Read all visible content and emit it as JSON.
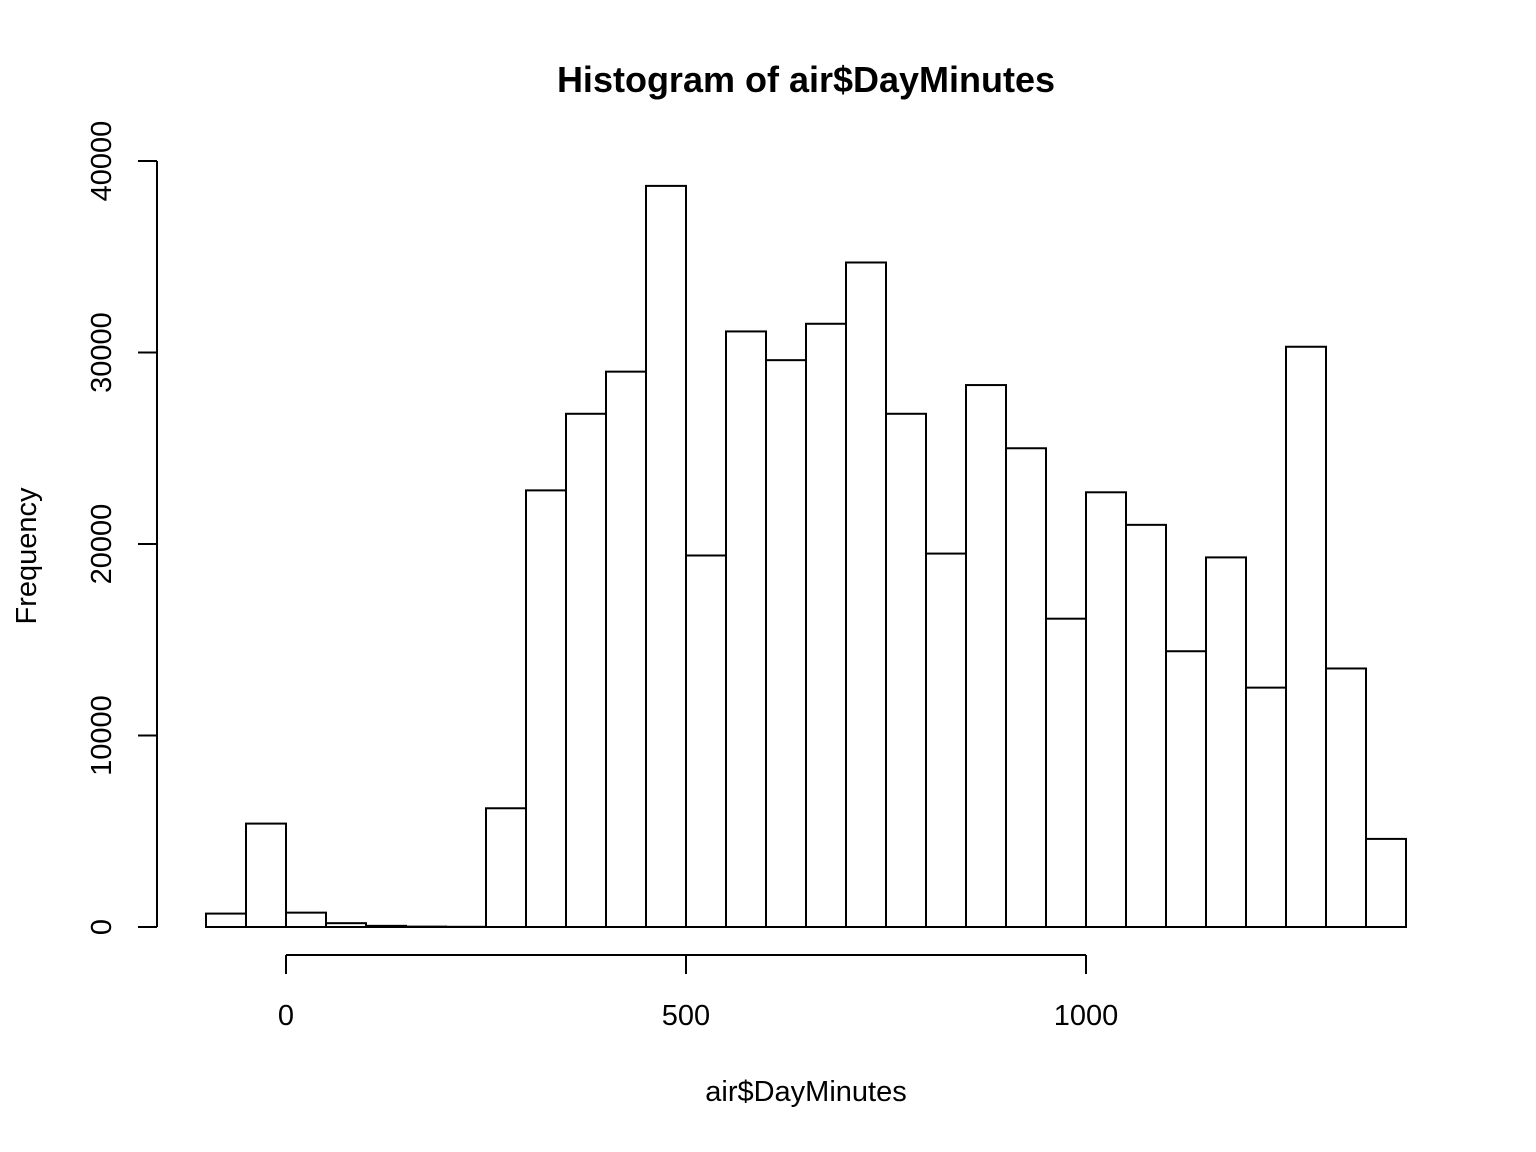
{
  "chart_data": {
    "type": "bar",
    "title": "Histogram of air$DayMinutes",
    "xlabel": "air$DayMinutes",
    "ylabel": "Frequency",
    "bin_width": 50,
    "bins": [
      {
        "x0": -100,
        "x1": -50,
        "count": 700
      },
      {
        "x0": -50,
        "x1": 0,
        "count": 5400
      },
      {
        "x0": 0,
        "x1": 50,
        "count": 750
      },
      {
        "x0": 50,
        "x1": 100,
        "count": 200
      },
      {
        "x0": 100,
        "x1": 150,
        "count": 60
      },
      {
        "x0": 150,
        "x1": 200,
        "count": 20
      },
      {
        "x0": 200,
        "x1": 250,
        "count": 10
      },
      {
        "x0": 250,
        "x1": 300,
        "count": 6200
      },
      {
        "x0": 300,
        "x1": 350,
        "count": 22800
      },
      {
        "x0": 350,
        "x1": 400,
        "count": 26800
      },
      {
        "x0": 400,
        "x1": 450,
        "count": 29000
      },
      {
        "x0": 450,
        "x1": 500,
        "count": 38700
      },
      {
        "x0": 500,
        "x1": 550,
        "count": 19400
      },
      {
        "x0": 550,
        "x1": 600,
        "count": 31100
      },
      {
        "x0": 600,
        "x1": 650,
        "count": 29600
      },
      {
        "x0": 650,
        "x1": 700,
        "count": 31500
      },
      {
        "x0": 700,
        "x1": 750,
        "count": 34700
      },
      {
        "x0": 750,
        "x1": 800,
        "count": 26800
      },
      {
        "x0": 800,
        "x1": 850,
        "count": 19500
      },
      {
        "x0": 850,
        "x1": 900,
        "count": 28300
      },
      {
        "x0": 900,
        "x1": 950,
        "count": 25000
      },
      {
        "x0": 950,
        "x1": 1000,
        "count": 16100
      },
      {
        "x0": 1000,
        "x1": 1050,
        "count": 22700
      },
      {
        "x0": 1050,
        "x1": 1100,
        "count": 21000
      },
      {
        "x0": 1100,
        "x1": 1150,
        "count": 14400
      },
      {
        "x0": 1150,
        "x1": 1200,
        "count": 19300
      },
      {
        "x0": 1200,
        "x1": 1250,
        "count": 12500
      },
      {
        "x0": 1250,
        "x1": 1300,
        "count": 30300
      },
      {
        "x0": 1300,
        "x1": 1350,
        "count": 13500
      },
      {
        "x0": 1350,
        "x1": 1400,
        "count": 4600
      }
    ],
    "xlim": [
      -100,
      1400
    ],
    "ylim": [
      0,
      40000
    ],
    "x_ticks": [
      0,
      500,
      1000
    ],
    "x_tick_labels": [
      "0",
      "500",
      "1000"
    ],
    "y_ticks": [
      0,
      10000,
      20000,
      30000,
      40000
    ],
    "y_tick_labels": [
      "0",
      "10000",
      "20000",
      "30000",
      "40000"
    ],
    "grid": false,
    "fill_color": "#ffffff",
    "stroke_color": "#000000"
  }
}
